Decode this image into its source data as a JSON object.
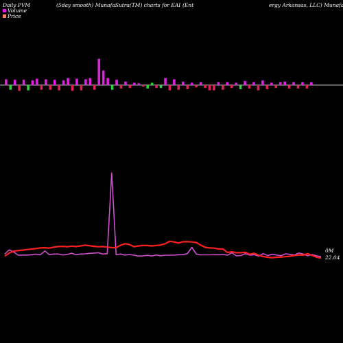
{
  "header": {
    "part1": "Daily PVM",
    "part2": "(5day smooth) MunafaSutra(TM) charts for EAI",
    "part3": "(Ent",
    "part4": "ergy Arkansas, LLC) MunafaSutra"
  },
  "legend": [
    {
      "label": "Volume",
      "color": "#e020e0"
    },
    {
      "label": "Price",
      "color": "#f08060"
    }
  ],
  "colors": {
    "volume_line": "#d050d0",
    "price_line": "#ff2020",
    "bar_up": "#e020e0",
    "bar_down": "#e0205a",
    "bar_green": "#30d040",
    "baseline": "#ffffff"
  },
  "chart_data": {
    "type": "line",
    "right_labels": {
      "volume": "0M",
      "price": "22.04"
    },
    "volume_bars": [
      10,
      -8,
      9,
      -10,
      9,
      -9,
      8,
      11,
      -8,
      10,
      -8,
      9,
      -9,
      8,
      12,
      -10,
      11,
      -9,
      10,
      12,
      -8,
      45,
      25,
      12,
      -8,
      9,
      -6,
      6,
      -5,
      4,
      3,
      -3,
      -6,
      4,
      -5,
      -5,
      12,
      -9,
      10,
      -8,
      6,
      -7,
      4,
      -4,
      5,
      -5,
      -9,
      -9,
      5,
      -8,
      5,
      -5,
      4,
      -7,
      7,
      -6,
      5,
      -9,
      8,
      -7,
      4,
      -5,
      5,
      6,
      -6,
      5,
      -6,
      5,
      -6,
      5
    ],
    "volume_bar_colors": [
      "m",
      "g",
      "m",
      "m",
      "m",
      "g",
      "m",
      "m",
      "m",
      "m",
      "m",
      "m",
      "m",
      "m",
      "m",
      "m",
      "m",
      "m",
      "m",
      "m",
      "m",
      "m",
      "m",
      "m",
      "g",
      "m",
      "m",
      "m",
      "m",
      "m",
      "m",
      "m",
      "g",
      "g",
      "m",
      "g",
      "m",
      "m",
      "m",
      "m",
      "m",
      "m",
      "m",
      "m",
      "m",
      "m",
      "m",
      "m",
      "m",
      "m",
      "m",
      "m",
      "m",
      "g",
      "m",
      "m",
      "m",
      "m",
      "m",
      "m",
      "m",
      "m",
      "m",
      "m",
      "m",
      "m",
      "m",
      "m",
      "m",
      "m"
    ],
    "series": [
      {
        "name": "Volume",
        "values": [
          4.5,
          9.5,
          7,
          3.2,
          3.4,
          3.4,
          3.8,
          4.4,
          3.8,
          8.2,
          3.8,
          4.6,
          4.6,
          3.6,
          4.1,
          5.6,
          3.8,
          4.6,
          4.8,
          5.4,
          5.7,
          6.1,
          4.6,
          5,
          100,
          3.7,
          4.7,
          3.4,
          4,
          3.2,
          2.2,
          2.5,
          3.1,
          2.3,
          3.5,
          2.6,
          3.2,
          3.2,
          3.4,
          3.8,
          3.8,
          5.2,
          12.5,
          4.5,
          3.6,
          3.6,
          3.6,
          3.8,
          3.8,
          4,
          3.3,
          6.1,
          2.4,
          2.8,
          5,
          3.3,
          3.8,
          2.1,
          5.1,
          2.8,
          4.3,
          3.5,
          2.5,
          4.8,
          4.2,
          3.5,
          5.8,
          4.5,
          2.5,
          4,
          2.5,
          1.4
        ]
      },
      {
        "name": "Price",
        "values": [
          3,
          4.5,
          5.5,
          5.8,
          6,
          6.3,
          6.5,
          6.8,
          7.1,
          7.2,
          7,
          7.5,
          7.8,
          7.9,
          7.7,
          8,
          7.8,
          8.1,
          8.5,
          8.2,
          7.9,
          7.7,
          7.8,
          7.5,
          7.3,
          7.2,
          8.5,
          9.2,
          8.8,
          7.7,
          8.1,
          8.3,
          8.3,
          8.1,
          8.3,
          8.6,
          9.2,
          10.4,
          10.1,
          9.6,
          10.2,
          10.2,
          10.1,
          9.8,
          8.5,
          7.4,
          7.1,
          7,
          6.6,
          6.5,
          4.8,
          5.2,
          4.7,
          4.7,
          4.9,
          3.9,
          4.4,
          3.4,
          2.8,
          2.4,
          2.2,
          2.4,
          2.5,
          2.7,
          2.9,
          3.3,
          3.6,
          3.5,
          4.2,
          3.3,
          2.4,
          2
        ]
      }
    ]
  }
}
